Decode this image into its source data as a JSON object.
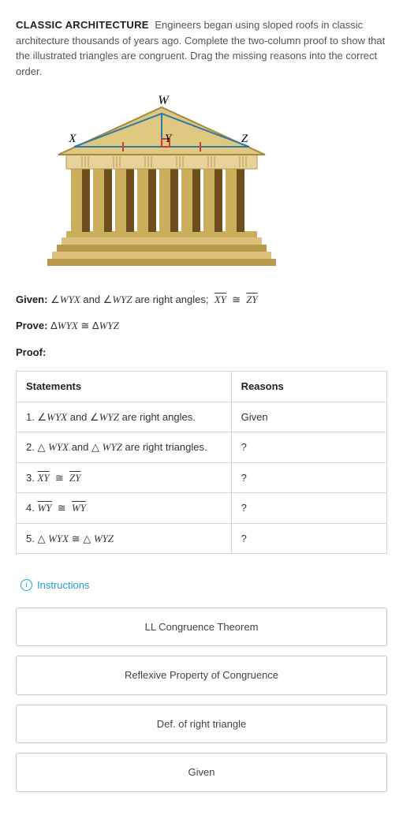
{
  "intro": {
    "lead": "CLASSIC ARCHITECTURE",
    "text": "Engineers began using sloped roofs in classic architecture thousands of years ago. Complete the two-column proof to show that the illustrated triangles are congruent. Drag the missing reasons into the correct order."
  },
  "figure": {
    "labels": {
      "W": "W",
      "X": "X",
      "Y": "Y",
      "Z": "Z"
    },
    "colors": {
      "roof_fill": "#e0c780",
      "roof_edge": "#a38a3f",
      "column_light": "#cbae5c",
      "column_dark": "#6b4e1b",
      "step_light": "#dcc07a",
      "step_dark": "#b99a4b",
      "frieze": "#e6d29a",
      "triangle_line": "#2b7aa6",
      "tick_red": "#d03a3a"
    }
  },
  "given": {
    "label": "Given:",
    "text_html": "∠<span class='math'>WYX</span> and ∠<span class='math'>WYZ</span> are right angles;&nbsp; <span class='math overline'>XY</span> &nbsp;≅&nbsp; <span class='math overline'>ZY</span>"
  },
  "prove": {
    "label": "Prove:",
    "text_html": "Δ<span class='math'>WYX</span> ≅ Δ<span class='math'>WYZ</span>"
  },
  "proof_label": "Proof:",
  "table": {
    "headers": {
      "statements": "Statements",
      "reasons": "Reasons"
    },
    "rows": [
      {
        "stmt_html": "1. ∠<span class='math'>WYX</span> and ∠<span class='math'>WYZ</span> are right angles.",
        "reason": "Given"
      },
      {
        "stmt_html": "2. <span class='tri'>△</span> <span class='math'>WYX</span> and <span class='tri'>△</span> <span class='math'>WYZ</span> are right triangles.",
        "reason": "?"
      },
      {
        "stmt_html": "3. <span class='math overline'>XY</span> &nbsp;≅&nbsp; <span class='math overline'>ZY</span>",
        "reason": "?"
      },
      {
        "stmt_html": "4. <span class='math overline'>WY</span> &nbsp;≅&nbsp; <span class='math overline'>WY</span>",
        "reason": "?"
      },
      {
        "stmt_html": "5. <span class='tri'>△</span> <span class='math'>WYX</span> ≅ <span class='tri'>△</span> <span class='math'>WYZ</span>",
        "reason": "?"
      }
    ]
  },
  "instructions_label": "Instructions",
  "answer_bank": [
    "LL Congruence Theorem",
    "Reflexive Property of Congruence",
    "Def. of right triangle",
    "Given"
  ]
}
